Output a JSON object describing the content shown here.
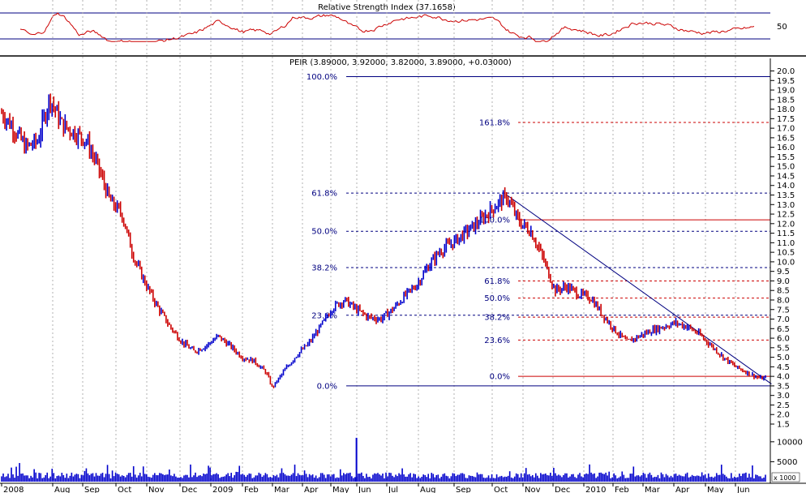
{
  "chart_data": {
    "type": "ohlc",
    "rsi_panel": {
      "title": "Relative Strength Index (37.1658)",
      "ytick": "50",
      "upper_level": 70,
      "lower_level": 30,
      "color": "#cc0000"
    },
    "price_panel": {
      "header": "PEIR (3.89000, 3.92000, 3.82000, 3.89000, +0.03000)",
      "ylim": [
        1.2,
        20.5
      ],
      "yticks": [
        "20.0",
        "19.5",
        "19.0",
        "18.5",
        "18.0",
        "17.5",
        "17.0",
        "16.5",
        "16.0",
        "15.5",
        "15.0",
        "14.5",
        "14.0",
        "13.5",
        "13.0",
        "12.5",
        "12.0",
        "11.5",
        "11.0",
        "10.5",
        "10.0",
        "9.5",
        "9.0",
        "8.5",
        "8.0",
        "7.5",
        "7.0",
        "6.5",
        "6.0",
        "5.5",
        "5.0",
        "4.5",
        "4.0",
        "3.5",
        "3.0",
        "2.5",
        "2.0",
        "1.5"
      ],
      "up_color": "#0000cc",
      "down_color": "#cc0000",
      "series_knots": [
        [
          0,
          17.8
        ],
        [
          2,
          17.0
        ],
        [
          4,
          16.0
        ],
        [
          6,
          16.3
        ],
        [
          8,
          18.6
        ],
        [
          10,
          17.2
        ],
        [
          12,
          16.8
        ],
        [
          14,
          16.4
        ],
        [
          16,
          15.0
        ],
        [
          18,
          13.2
        ],
        [
          20,
          12.5
        ],
        [
          22,
          10.2
        ],
        [
          24,
          8.8
        ],
        [
          26,
          7.6
        ],
        [
          28,
          6.6
        ],
        [
          30,
          5.8
        ],
        [
          32,
          5.3
        ],
        [
          34,
          5.6
        ],
        [
          36,
          6.1
        ],
        [
          38,
          5.6
        ],
        [
          40,
          5.0
        ],
        [
          42,
          4.8
        ],
        [
          44,
          4.2
        ],
        [
          45,
          3.4
        ],
        [
          47,
          4.3
        ],
        [
          49,
          5.1
        ],
        [
          51,
          5.7
        ],
        [
          53,
          6.6
        ],
        [
          55,
          7.6
        ],
        [
          57,
          8.0
        ],
        [
          59,
          7.5
        ],
        [
          61,
          7.1
        ],
        [
          63,
          7.0
        ],
        [
          65,
          7.5
        ],
        [
          67,
          8.2
        ],
        [
          69,
          8.8
        ],
        [
          71,
          9.8
        ],
        [
          73,
          10.6
        ],
        [
          75,
          11.0
        ],
        [
          77,
          11.5
        ],
        [
          79,
          12.0
        ],
        [
          81,
          12.6
        ],
        [
          83,
          13.2
        ],
        [
          84,
          13.4
        ],
        [
          86,
          12.1
        ],
        [
          88,
          11.6
        ],
        [
          90,
          10.2
        ],
        [
          92,
          8.5
        ],
        [
          94,
          8.7
        ],
        [
          96,
          8.3
        ],
        [
          98,
          8.1
        ],
        [
          100,
          7.2
        ],
        [
          102,
          6.4
        ],
        [
          104,
          5.8
        ],
        [
          106,
          6.1
        ],
        [
          108,
          6.4
        ],
        [
          110,
          6.6
        ],
        [
          112,
          6.8
        ],
        [
          114,
          6.6
        ],
        [
          116,
          6.2
        ],
        [
          118,
          5.6
        ],
        [
          120,
          5.0
        ],
        [
          122,
          4.5
        ],
        [
          124,
          4.2
        ],
        [
          126,
          3.9
        ],
        [
          127,
          3.9
        ]
      ]
    },
    "x_labels": [
      "2008",
      "Aug",
      "Sep",
      "Oct",
      "Nov",
      "Dec",
      "2009",
      "Feb",
      "Mar",
      "Apr",
      "May",
      "Jun",
      "Jul",
      "Aug",
      "Sep",
      "Oct",
      "Nov",
      "Dec",
      "2010",
      "Feb",
      "Mar",
      "Apr",
      "May",
      "Jun"
    ],
    "fib_set_1": {
      "color": "#000080",
      "levels": [
        {
          "label": "100.0%",
          "price": 19.7
        },
        {
          "label": "161.8%",
          "price": null
        },
        {
          "label": "61.8%",
          "price": 13.6
        },
        {
          "label": "50.0%",
          "price": 11.6
        },
        {
          "label": "38.2%",
          "price": 9.7
        },
        {
          "label": "23.6%",
          "price": 7.2
        },
        {
          "label": "0.0%",
          "price": 3.5
        }
      ]
    },
    "fib_set_2": {
      "color": "#cc0000",
      "levels": [
        {
          "label": "161.8%",
          "price": 17.3
        },
        {
          "label": "100.0%",
          "price": 12.2
        },
        {
          "label": "61.8%",
          "price": 9.0
        },
        {
          "label": "50.0%",
          "price": 8.1
        },
        {
          "label": "38.2%",
          "price": 7.1
        },
        {
          "label": "23.6%",
          "price": 5.9
        },
        {
          "label": "0.0%",
          "price": 4.0
        }
      ]
    },
    "trendline": {
      "from": [
        84,
        13.5
      ],
      "to": [
        128,
        3.6
      ],
      "color": "#000080"
    },
    "volume_panel": {
      "ytick_labels": [
        "10000",
        "5000"
      ],
      "ytick_values": [
        10000,
        5000
      ],
      "ymax": 12000,
      "spike": {
        "index": 59,
        "value": 11000
      },
      "unit_label": "x 1000",
      "color": "#0000cc"
    }
  }
}
